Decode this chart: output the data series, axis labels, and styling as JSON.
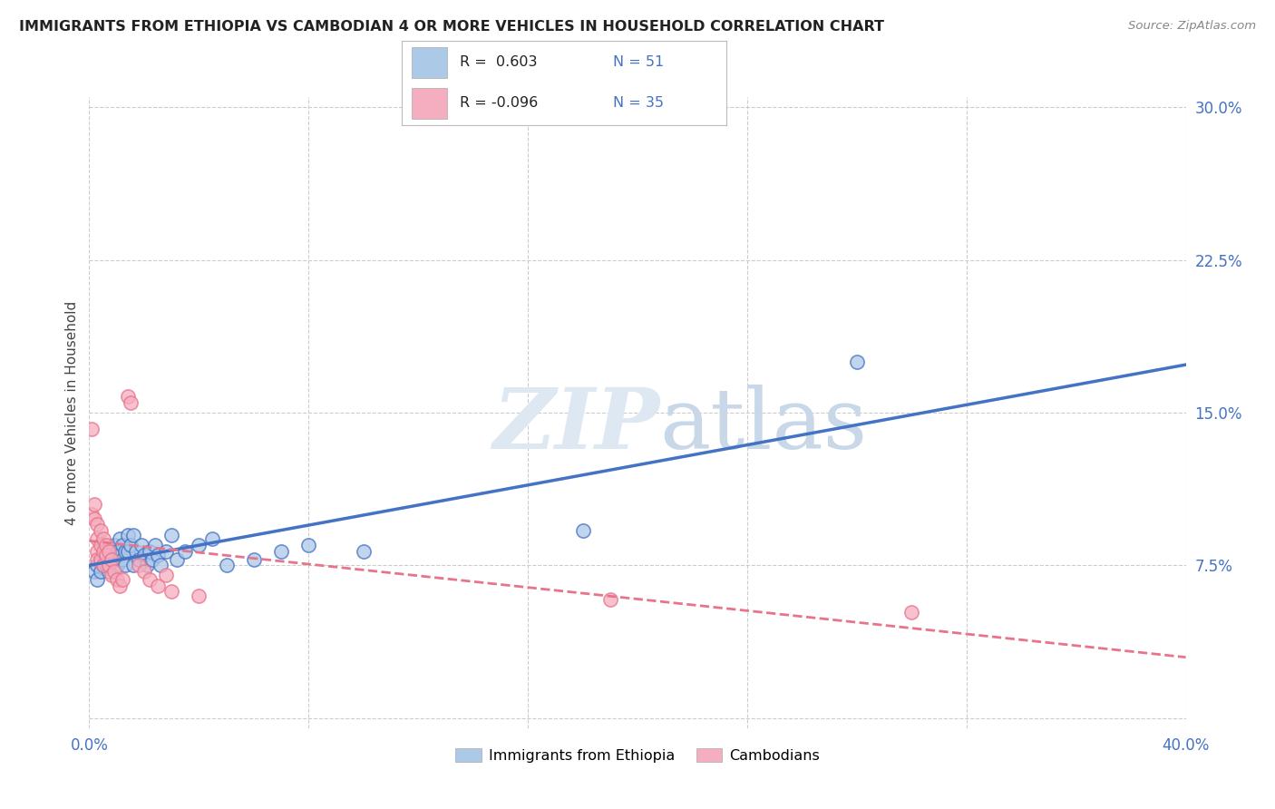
{
  "title": "IMMIGRANTS FROM ETHIOPIA VS CAMBODIAN 4 OR MORE VEHICLES IN HOUSEHOLD CORRELATION CHART",
  "source": "Source: ZipAtlas.com",
  "ylabel": "4 or more Vehicles in Household",
  "xlim": [
    0.0,
    0.4
  ],
  "ylim": [
    -0.005,
    0.305
  ],
  "xticks": [
    0.0,
    0.08,
    0.16,
    0.24,
    0.32,
    0.4
  ],
  "yticks": [
    0.0,
    0.075,
    0.15,
    0.225,
    0.3
  ],
  "xtick_labels": [
    "0.0%",
    "",
    "",
    "",
    "",
    "40.0%"
  ],
  "ytick_labels": [
    "",
    "7.5%",
    "15.0%",
    "22.5%",
    "30.0%"
  ],
  "legend_ethiopia_label": "Immigrants from Ethiopia",
  "legend_cambodian_label": "Cambodians",
  "legend_r_ethiopia": "R =  0.603",
  "legend_n_ethiopia": "N = 51",
  "legend_r_cambodian": "R = -0.096",
  "legend_n_cambodian": "N = 35",
  "ethiopia_color": "#adc9e8",
  "cambodian_color": "#f5adc0",
  "ethiopia_line_color": "#4472c4",
  "cambodian_line_color": "#e8748a",
  "axis_color": "#4472c4",
  "background_color": "#ffffff",
  "watermark_color": "#dde8f3",
  "ethiopia_points": [
    [
      0.002,
      0.072
    ],
    [
      0.003,
      0.075
    ],
    [
      0.003,
      0.068
    ],
    [
      0.004,
      0.078
    ],
    [
      0.004,
      0.072
    ],
    [
      0.005,
      0.08
    ],
    [
      0.005,
      0.075
    ],
    [
      0.006,
      0.082
    ],
    [
      0.006,
      0.075
    ],
    [
      0.007,
      0.08
    ],
    [
      0.007,
      0.072
    ],
    [
      0.008,
      0.082
    ],
    [
      0.008,
      0.078
    ],
    [
      0.009,
      0.085
    ],
    [
      0.009,
      0.078
    ],
    [
      0.01,
      0.082
    ],
    [
      0.01,
      0.075
    ],
    [
      0.011,
      0.088
    ],
    [
      0.011,
      0.08
    ],
    [
      0.012,
      0.085
    ],
    [
      0.012,
      0.078
    ],
    [
      0.013,
      0.082
    ],
    [
      0.013,
      0.075
    ],
    [
      0.014,
      0.09
    ],
    [
      0.014,
      0.082
    ],
    [
      0.015,
      0.085
    ],
    [
      0.016,
      0.09
    ],
    [
      0.016,
      0.075
    ],
    [
      0.017,
      0.082
    ],
    [
      0.018,
      0.078
    ],
    [
      0.019,
      0.085
    ],
    [
      0.02,
      0.08
    ],
    [
      0.021,
      0.075
    ],
    [
      0.022,
      0.082
    ],
    [
      0.023,
      0.078
    ],
    [
      0.024,
      0.085
    ],
    [
      0.025,
      0.08
    ],
    [
      0.026,
      0.075
    ],
    [
      0.028,
      0.082
    ],
    [
      0.03,
      0.09
    ],
    [
      0.032,
      0.078
    ],
    [
      0.035,
      0.082
    ],
    [
      0.04,
      0.085
    ],
    [
      0.045,
      0.088
    ],
    [
      0.05,
      0.075
    ],
    [
      0.06,
      0.078
    ],
    [
      0.07,
      0.082
    ],
    [
      0.08,
      0.085
    ],
    [
      0.1,
      0.082
    ],
    [
      0.18,
      0.092
    ],
    [
      0.28,
      0.175
    ]
  ],
  "cambodian_points": [
    [
      0.001,
      0.1
    ],
    [
      0.002,
      0.105
    ],
    [
      0.002,
      0.098
    ],
    [
      0.003,
      0.095
    ],
    [
      0.003,
      0.088
    ],
    [
      0.003,
      0.082
    ],
    [
      0.003,
      0.078
    ],
    [
      0.004,
      0.092
    ],
    [
      0.004,
      0.085
    ],
    [
      0.004,
      0.078
    ],
    [
      0.005,
      0.088
    ],
    [
      0.005,
      0.082
    ],
    [
      0.005,
      0.075
    ],
    [
      0.006,
      0.085
    ],
    [
      0.006,
      0.08
    ],
    [
      0.007,
      0.082
    ],
    [
      0.007,
      0.075
    ],
    [
      0.008,
      0.078
    ],
    [
      0.008,
      0.07
    ],
    [
      0.009,
      0.072
    ],
    [
      0.01,
      0.068
    ],
    [
      0.011,
      0.065
    ],
    [
      0.012,
      0.068
    ],
    [
      0.014,
      0.158
    ],
    [
      0.015,
      0.155
    ],
    [
      0.018,
      0.075
    ],
    [
      0.02,
      0.072
    ],
    [
      0.022,
      0.068
    ],
    [
      0.025,
      0.065
    ],
    [
      0.028,
      0.07
    ],
    [
      0.03,
      0.062
    ],
    [
      0.04,
      0.06
    ],
    [
      0.001,
      0.142
    ],
    [
      0.19,
      0.058
    ],
    [
      0.3,
      0.052
    ]
  ]
}
